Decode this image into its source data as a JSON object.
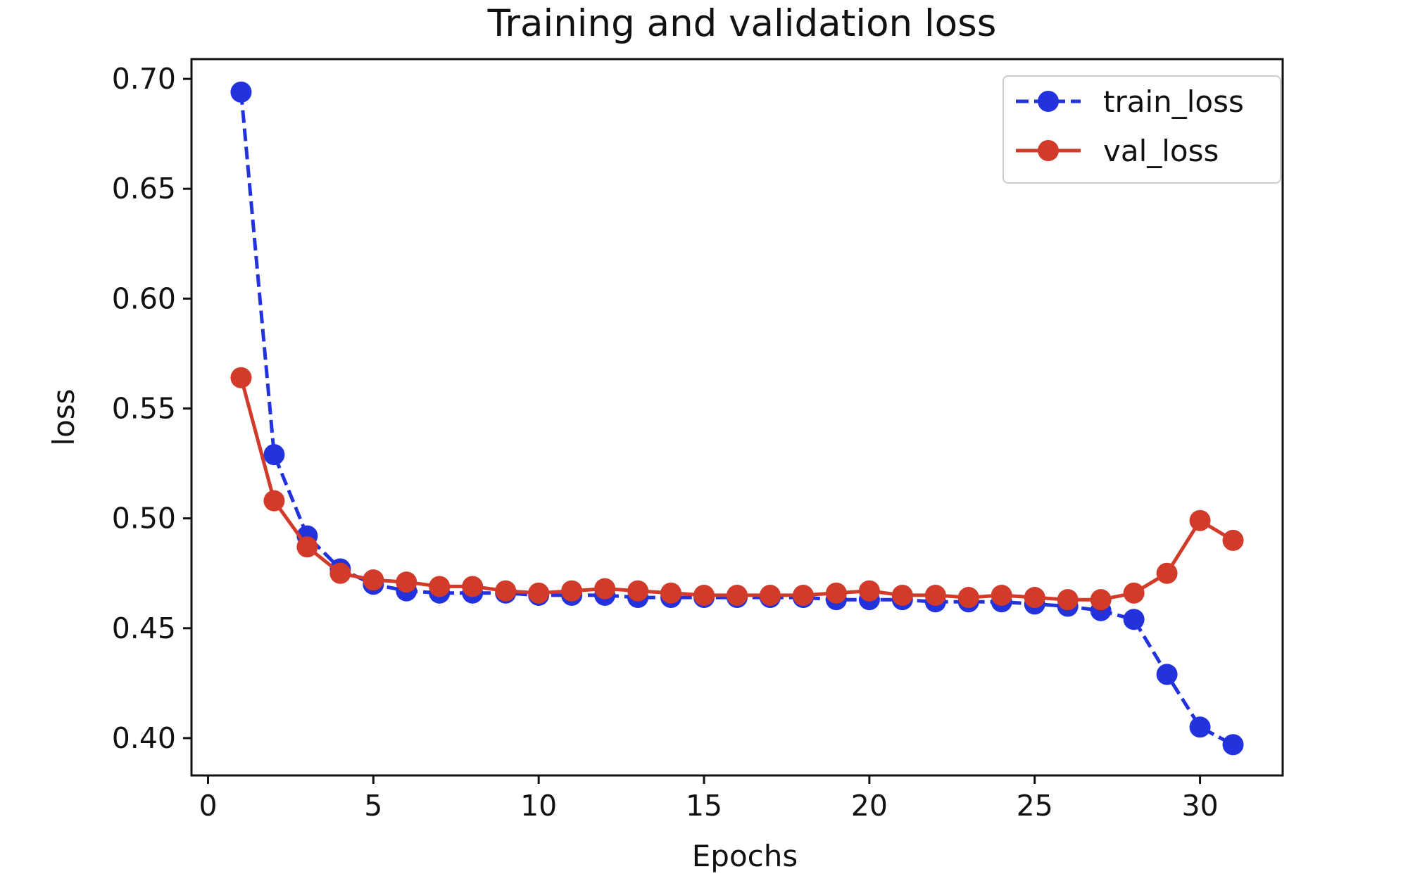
{
  "chart_data": {
    "type": "line",
    "title": "Training and validation loss",
    "xlabel": "Epochs",
    "ylabel": "loss",
    "xlim": [
      -0.5,
      32.5
    ],
    "ylim": [
      0.383,
      0.709
    ],
    "xticks": [
      0,
      5,
      10,
      15,
      20,
      25,
      30
    ],
    "yticks": [
      0.4,
      0.45,
      0.5,
      0.55,
      0.6,
      0.65,
      0.7
    ],
    "ytick_labels": [
      "0.40",
      "0.45",
      "0.50",
      "0.55",
      "0.60",
      "0.65",
      "0.70"
    ],
    "grid": false,
    "legend_position": "top-right",
    "x": [
      1,
      2,
      3,
      4,
      5,
      6,
      7,
      8,
      9,
      10,
      11,
      12,
      13,
      14,
      15,
      16,
      17,
      18,
      19,
      20,
      21,
      22,
      23,
      24,
      25,
      26,
      27,
      28,
      29,
      30,
      31
    ],
    "series": [
      {
        "name": "train_loss",
        "color": "#2233dd",
        "line_style": "dashed",
        "marker": "circle",
        "values": [
          0.694,
          0.529,
          0.492,
          0.477,
          0.47,
          0.467,
          0.466,
          0.466,
          0.466,
          0.465,
          0.465,
          0.465,
          0.464,
          0.464,
          0.464,
          0.464,
          0.464,
          0.464,
          0.463,
          0.463,
          0.463,
          0.462,
          0.462,
          0.462,
          0.461,
          0.46,
          0.458,
          0.454,
          0.429,
          0.405,
          0.397
        ]
      },
      {
        "name": "val_loss",
        "color": "#d23a2a",
        "line_style": "solid",
        "marker": "circle",
        "values": [
          0.564,
          0.508,
          0.487,
          0.475,
          0.472,
          0.471,
          0.469,
          0.469,
          0.467,
          0.466,
          0.467,
          0.468,
          0.467,
          0.466,
          0.465,
          0.465,
          0.465,
          0.465,
          0.466,
          0.467,
          0.465,
          0.465,
          0.464,
          0.465,
          0.464,
          0.463,
          0.463,
          0.466,
          0.475,
          0.499,
          0.49
        ]
      }
    ]
  }
}
